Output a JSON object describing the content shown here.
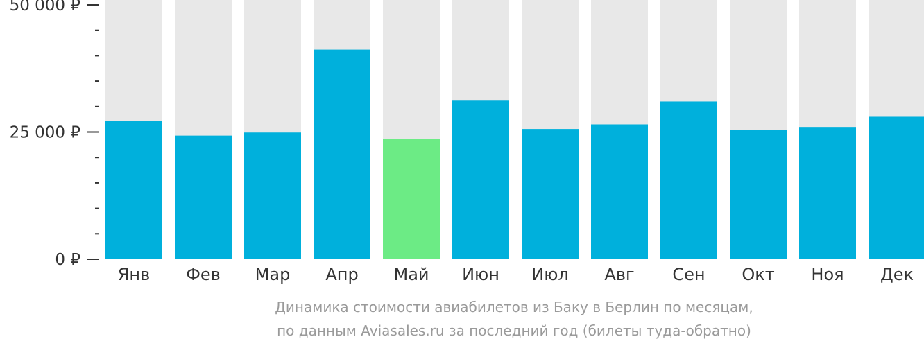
{
  "chart_data": {
    "type": "bar",
    "categories": [
      "Янв",
      "Фев",
      "Мар",
      "Апр",
      "Май",
      "Июн",
      "Июл",
      "Авг",
      "Сен",
      "Окт",
      "Ноя",
      "Дек"
    ],
    "values": [
      27200,
      24300,
      24900,
      41200,
      23600,
      31300,
      25600,
      26500,
      31000,
      25400,
      26000,
      28000
    ],
    "highlight_index": 4,
    "ylim": [
      0,
      50000
    ],
    "y_ticks": [
      {
        "value": 0,
        "label": "0 ₽"
      },
      {
        "value": 25000,
        "label": "25 000 ₽"
      },
      {
        "value": 50000,
        "label": "50 000 ₽"
      }
    ],
    "minor_tick_step": 5000,
    "grid": false,
    "colors": {
      "bar": "#00b0dc",
      "highlight": "#6ceb85",
      "background_bar": "#e8e8e8",
      "axis_text": "#333333",
      "caption_text": "#9a9a9a"
    }
  },
  "caption": {
    "line1": "Динамика стоимости авиабилетов из Баку в Берлин по месяцам,",
    "line2": "по данным Aviasales.ru за последний год (билеты туда-обратно)"
  }
}
